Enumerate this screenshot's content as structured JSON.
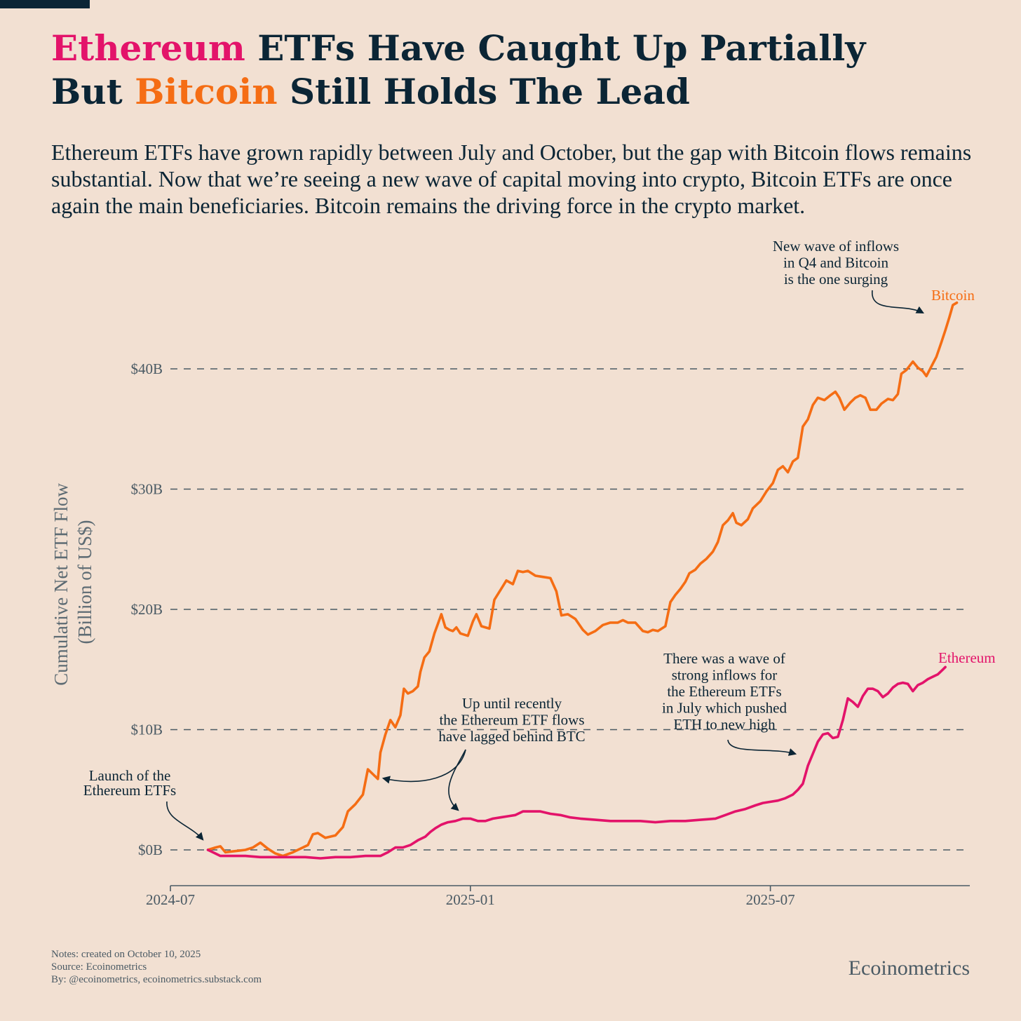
{
  "title": {
    "line1_highlight": "Ethereum",
    "line1_rest": " ETFs Have Caught Up Partially",
    "line2_pre": "But ",
    "line2_highlight": "Bitcoin",
    "line2_rest": " Still Holds The Lead"
  },
  "subtitle": "Ethereum ETFs have grown rapidly between July and October, but the gap with Bitcoin flows remains substantial. Now that we’re seeing a new wave of capital moving into crypto, Bitcoin ETFs are once again the main beneficiaries. Bitcoin remains the driving force in the crypto market.",
  "notes": {
    "created": "Notes: created on October 10, 2025",
    "source": "Source: Ecoinometrics",
    "by": "By: @ecoinometrics, ecoinometrics.substack.com"
  },
  "brand": "Ecoinometrics",
  "colors": {
    "bitcoin": "#f56d14",
    "ethereum": "#e3136a",
    "ink": "#0b2535",
    "axis": "#4a5a64",
    "background": "#f2e0d2"
  },
  "chart_data": {
    "type": "line",
    "title": "",
    "xlabel": "",
    "ylabel_line1": "Cumulative Net ETF Flow",
    "ylabel_line2": "(Billion of US$)",
    "x_range": [
      0,
      15.73
    ],
    "ylim": [
      -3,
      45
    ],
    "x_ticks": [
      {
        "x": 0,
        "label": "2024-07"
      },
      {
        "x": 6,
        "label": "2025-01"
      },
      {
        "x": 12,
        "label": "2025-07"
      }
    ],
    "y_ticks": [
      {
        "y": 0,
        "label": "$0B"
      },
      {
        "y": 10,
        "label": "$10B"
      },
      {
        "y": 20,
        "label": "$20B"
      },
      {
        "y": 30,
        "label": "$30B"
      },
      {
        "y": 40,
        "label": "$40B"
      }
    ],
    "grid": true,
    "series": [
      {
        "name": "Bitcoin",
        "label": "Bitcoin",
        "color": "#f56d14",
        "points": [
          [
            0.75,
            0.0
          ],
          [
            0.9,
            0.2
          ],
          [
            1.0,
            0.3
          ],
          [
            1.1,
            -0.2
          ],
          [
            1.3,
            -0.1
          ],
          [
            1.5,
            0.0
          ],
          [
            1.65,
            0.2
          ],
          [
            1.8,
            0.6
          ],
          [
            1.95,
            0.1
          ],
          [
            2.1,
            -0.3
          ],
          [
            2.25,
            -0.5
          ],
          [
            2.45,
            -0.2
          ],
          [
            2.6,
            0.1
          ],
          [
            2.75,
            0.4
          ],
          [
            2.85,
            1.3
          ],
          [
            2.95,
            1.4
          ],
          [
            3.1,
            1.0
          ],
          [
            3.3,
            1.2
          ],
          [
            3.45,
            1.9
          ],
          [
            3.55,
            3.2
          ],
          [
            3.7,
            3.8
          ],
          [
            3.85,
            4.6
          ],
          [
            3.95,
            6.7
          ],
          [
            4.05,
            6.3
          ],
          [
            4.15,
            5.9
          ],
          [
            4.2,
            8.1
          ],
          [
            4.3,
            9.6
          ],
          [
            4.4,
            10.8
          ],
          [
            4.5,
            10.2
          ],
          [
            4.6,
            11.2
          ],
          [
            4.67,
            13.4
          ],
          [
            4.75,
            13.0
          ],
          [
            4.85,
            13.2
          ],
          [
            4.95,
            13.6
          ],
          [
            5.0,
            14.8
          ],
          [
            5.08,
            16.0
          ],
          [
            5.18,
            16.5
          ],
          [
            5.28,
            18.0
          ],
          [
            5.35,
            18.8
          ],
          [
            5.42,
            19.6
          ],
          [
            5.5,
            18.5
          ],
          [
            5.58,
            18.3
          ],
          [
            5.65,
            18.2
          ],
          [
            5.72,
            18.5
          ],
          [
            5.8,
            18.0
          ],
          [
            5.95,
            17.8
          ],
          [
            6.05,
            19.0
          ],
          [
            6.12,
            19.6
          ],
          [
            6.22,
            18.6
          ],
          [
            6.38,
            18.4
          ],
          [
            6.48,
            20.8
          ],
          [
            6.6,
            21.6
          ],
          [
            6.72,
            22.4
          ],
          [
            6.85,
            22.1
          ],
          [
            6.95,
            23.2
          ],
          [
            7.05,
            23.1
          ],
          [
            7.15,
            23.2
          ],
          [
            7.3,
            22.8
          ],
          [
            7.45,
            22.7
          ],
          [
            7.6,
            22.6
          ],
          [
            7.72,
            21.5
          ],
          [
            7.82,
            19.5
          ],
          [
            7.95,
            19.6
          ],
          [
            8.1,
            19.2
          ],
          [
            8.25,
            18.3
          ],
          [
            8.35,
            17.9
          ],
          [
            8.5,
            18.2
          ],
          [
            8.65,
            18.7
          ],
          [
            8.8,
            18.9
          ],
          [
            8.95,
            18.9
          ],
          [
            9.05,
            19.1
          ],
          [
            9.15,
            18.9
          ],
          [
            9.3,
            18.9
          ],
          [
            9.45,
            18.2
          ],
          [
            9.55,
            18.1
          ],
          [
            9.65,
            18.3
          ],
          [
            9.75,
            18.2
          ],
          [
            9.9,
            18.6
          ],
          [
            10.0,
            20.6
          ],
          [
            10.1,
            21.2
          ],
          [
            10.2,
            21.7
          ],
          [
            10.3,
            22.3
          ],
          [
            10.38,
            23.0
          ],
          [
            10.5,
            23.3
          ],
          [
            10.6,
            23.8
          ],
          [
            10.72,
            24.2
          ],
          [
            10.85,
            24.8
          ],
          [
            10.95,
            25.6
          ],
          [
            11.05,
            27.0
          ],
          [
            11.15,
            27.4
          ],
          [
            11.25,
            28.0
          ],
          [
            11.32,
            27.2
          ],
          [
            11.42,
            27.0
          ],
          [
            11.55,
            27.5
          ],
          [
            11.65,
            28.4
          ],
          [
            11.8,
            29.0
          ],
          [
            11.92,
            29.8
          ],
          [
            12.05,
            30.5
          ],
          [
            12.15,
            31.6
          ],
          [
            12.25,
            31.9
          ],
          [
            12.35,
            31.4
          ],
          [
            12.45,
            32.3
          ],
          [
            12.55,
            32.6
          ],
          [
            12.65,
            35.2
          ],
          [
            12.75,
            35.8
          ],
          [
            12.85,
            37.0
          ],
          [
            12.95,
            37.6
          ],
          [
            13.08,
            37.4
          ],
          [
            13.2,
            37.8
          ],
          [
            13.3,
            38.1
          ],
          [
            13.38,
            37.6
          ],
          [
            13.48,
            36.6
          ],
          [
            13.6,
            37.2
          ],
          [
            13.7,
            37.6
          ],
          [
            13.8,
            37.8
          ],
          [
            13.9,
            37.6
          ],
          [
            14.0,
            36.6
          ],
          [
            14.12,
            36.6
          ],
          [
            14.22,
            37.1
          ],
          [
            14.35,
            37.5
          ],
          [
            14.45,
            37.4
          ],
          [
            14.55,
            37.9
          ],
          [
            14.62,
            39.6
          ],
          [
            14.72,
            39.9
          ],
          [
            14.85,
            40.6
          ],
          [
            14.95,
            40.1
          ],
          [
            15.05,
            39.8
          ],
          [
            15.12,
            39.4
          ],
          [
            15.22,
            40.2
          ],
          [
            15.32,
            41.0
          ],
          [
            15.42,
            42.2
          ],
          [
            15.5,
            43.2
          ],
          [
            15.58,
            44.3
          ],
          [
            15.65,
            45.3
          ],
          [
            15.73,
            45.5
          ]
        ]
      },
      {
        "name": "Ethereum",
        "label": "Ethereum",
        "color": "#e3136a",
        "points": [
          [
            0.75,
            0.0
          ],
          [
            0.85,
            -0.2
          ],
          [
            1.0,
            -0.5
          ],
          [
            1.2,
            -0.5
          ],
          [
            1.5,
            -0.5
          ],
          [
            1.8,
            -0.6
          ],
          [
            2.1,
            -0.6
          ],
          [
            2.4,
            -0.6
          ],
          [
            2.7,
            -0.6
          ],
          [
            3.0,
            -0.7
          ],
          [
            3.3,
            -0.6
          ],
          [
            3.6,
            -0.6
          ],
          [
            3.9,
            -0.5
          ],
          [
            4.2,
            -0.5
          ],
          [
            4.35,
            -0.2
          ],
          [
            4.5,
            0.2
          ],
          [
            4.65,
            0.2
          ],
          [
            4.8,
            0.4
          ],
          [
            4.95,
            0.8
          ],
          [
            5.1,
            1.1
          ],
          [
            5.2,
            1.5
          ],
          [
            5.3,
            1.8
          ],
          [
            5.42,
            2.1
          ],
          [
            5.55,
            2.3
          ],
          [
            5.7,
            2.4
          ],
          [
            5.85,
            2.6
          ],
          [
            6.0,
            2.6
          ],
          [
            6.15,
            2.4
          ],
          [
            6.3,
            2.4
          ],
          [
            6.45,
            2.6
          ],
          [
            6.6,
            2.7
          ],
          [
            6.75,
            2.8
          ],
          [
            6.9,
            2.9
          ],
          [
            7.05,
            3.2
          ],
          [
            7.2,
            3.2
          ],
          [
            7.4,
            3.2
          ],
          [
            7.6,
            3.0
          ],
          [
            7.8,
            2.9
          ],
          [
            8.0,
            2.7
          ],
          [
            8.2,
            2.6
          ],
          [
            8.5,
            2.5
          ],
          [
            8.8,
            2.4
          ],
          [
            9.1,
            2.4
          ],
          [
            9.4,
            2.4
          ],
          [
            9.7,
            2.3
          ],
          [
            10.0,
            2.4
          ],
          [
            10.3,
            2.4
          ],
          [
            10.6,
            2.5
          ],
          [
            10.9,
            2.6
          ],
          [
            11.1,
            2.9
          ],
          [
            11.3,
            3.2
          ],
          [
            11.5,
            3.4
          ],
          [
            11.7,
            3.7
          ],
          [
            11.85,
            3.9
          ],
          [
            12.0,
            4.0
          ],
          [
            12.15,
            4.1
          ],
          [
            12.3,
            4.3
          ],
          [
            12.45,
            4.6
          ],
          [
            12.55,
            5.0
          ],
          [
            12.65,
            5.5
          ],
          [
            12.75,
            7.0
          ],
          [
            12.85,
            8.0
          ],
          [
            12.95,
            9.0
          ],
          [
            13.05,
            9.6
          ],
          [
            13.15,
            9.7
          ],
          [
            13.25,
            9.3
          ],
          [
            13.35,
            9.4
          ],
          [
            13.45,
            10.8
          ],
          [
            13.55,
            12.6
          ],
          [
            13.65,
            12.3
          ],
          [
            13.75,
            11.9
          ],
          [
            13.85,
            12.8
          ],
          [
            13.95,
            13.4
          ],
          [
            14.05,
            13.4
          ],
          [
            14.15,
            13.2
          ],
          [
            14.25,
            12.7
          ],
          [
            14.35,
            13.0
          ],
          [
            14.45,
            13.5
          ],
          [
            14.55,
            13.8
          ],
          [
            14.65,
            13.9
          ],
          [
            14.75,
            13.8
          ],
          [
            14.85,
            13.2
          ],
          [
            14.95,
            13.7
          ],
          [
            15.05,
            13.9
          ],
          [
            15.15,
            14.2
          ],
          [
            15.25,
            14.4
          ],
          [
            15.35,
            14.6
          ],
          [
            15.45,
            15.0
          ],
          [
            15.5,
            15.2
          ]
        ]
      }
    ],
    "annotations": [
      {
        "id": "launch",
        "lines": [
          "Launch of the",
          "Ethereum ETFs"
        ]
      },
      {
        "id": "lagged",
        "lines": [
          "Up until recently",
          "the Ethereum ETF flows",
          "have lagged behind BTC"
        ]
      },
      {
        "id": "july",
        "lines": [
          "There was a wave of",
          "strong inflows for",
          "the Ethereum ETFs",
          "in July which pushed",
          "ETH to new high"
        ]
      },
      {
        "id": "q4",
        "lines": [
          "New wave of inflows",
          "in Q4 and Bitcoin",
          "is the one surging"
        ]
      }
    ]
  }
}
